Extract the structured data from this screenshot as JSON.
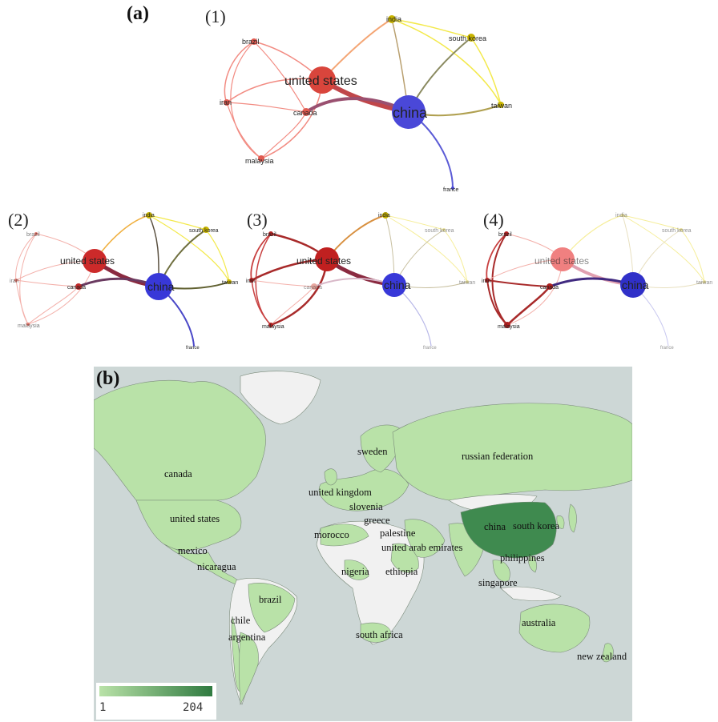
{
  "panel_a": {
    "label": "(a)",
    "subpanels": [
      {
        "label": "(1)"
      },
      {
        "label": "(2)"
      },
      {
        "label": "(3)"
      },
      {
        "label": "(4)"
      }
    ],
    "nodes": {
      "united_states": "united states",
      "china": "china",
      "india": "india",
      "south_korea": "south korea",
      "taiwan": "taiwan",
      "brazil": "brazil",
      "iran": "iran",
      "canada": "canada",
      "malaysia": "malaysia",
      "france": "france"
    },
    "colors": {
      "us_red": "#d9453c",
      "china_blue": "#4a48d8",
      "yellow": "#e8d400",
      "pink_edge": "#f08a82"
    }
  },
  "panel_b": {
    "label": "(b)",
    "countries": [
      "canada",
      "united states",
      "mexico",
      "nicaragua",
      "brazil",
      "chile",
      "argentina",
      "sweden",
      "united kingdom",
      "slovenia",
      "greece",
      "morocco",
      "palestine",
      "united arab emirates",
      "nigeria",
      "ethiopia",
      "south africa",
      "russian federation",
      "china",
      "south korea",
      "philippines",
      "singapore",
      "australia",
      "new zealand"
    ],
    "legend": {
      "min": "1",
      "max": "204"
    },
    "colors": {
      "ocean": "#cdd7d6",
      "land_none": "#f1f1f1",
      "land_low": "#b9e2a8",
      "land_high": "#3f8a4f"
    }
  }
}
